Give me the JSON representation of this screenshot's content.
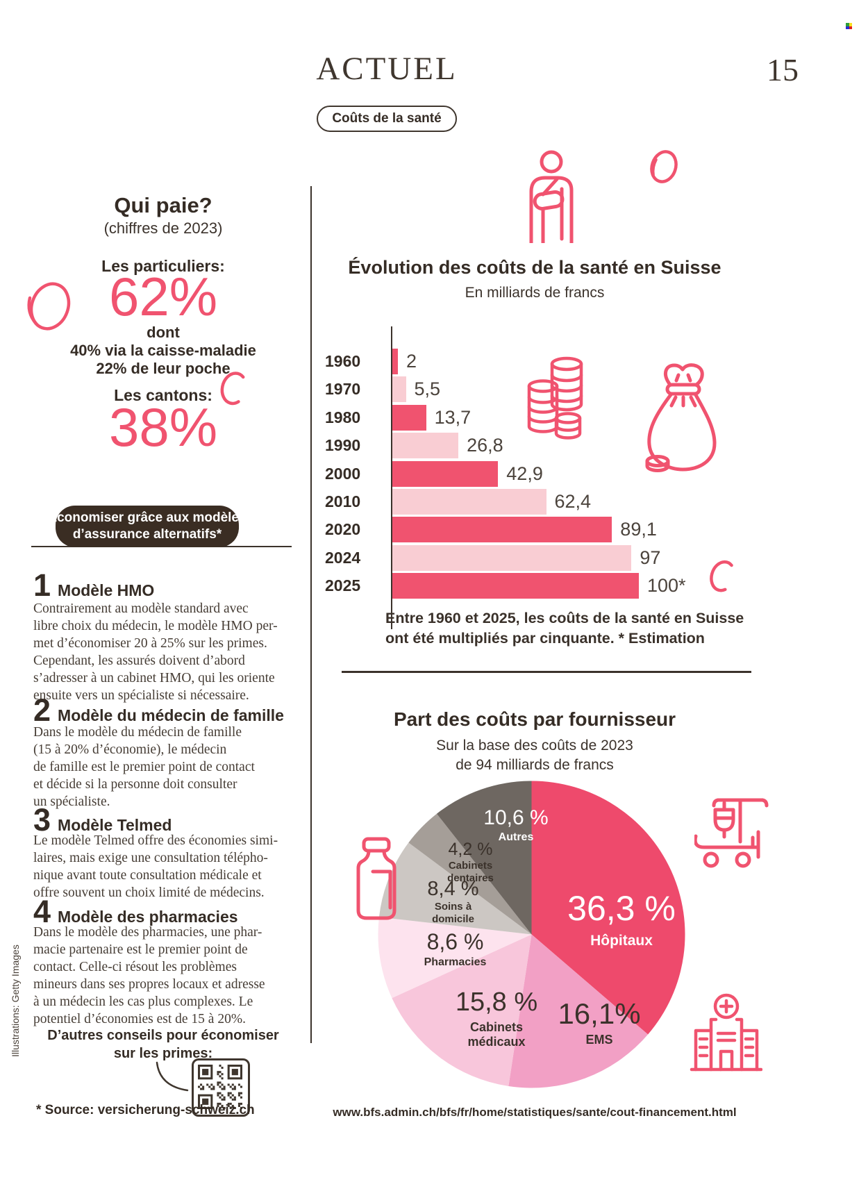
{
  "page": {
    "masthead": "ACTUEL",
    "section_badge": "Coûts de la santé",
    "page_number": "15",
    "credit_vertical": "Illustrations: Getty Images",
    "footnote": "* Source: versicherung-schweiz.ch",
    "source_url": "www.bfs.admin.ch/bfs/fr/home/statistiques/sante/cout-financement.html"
  },
  "colors": {
    "accent_pink": "#f0536f",
    "accent_pink_light": "#f9cdd3",
    "ink_brown": "#352c25",
    "badge_bg": "#3a2d23"
  },
  "who_pays": {
    "title": "Qui paie?",
    "subtitle": "(chiffres de 2023)",
    "particuliers_label": "Les particuliers:",
    "particuliers_value": "62%",
    "particuliers_details": [
      "dont",
      "40% via la caisse-maladie",
      "22% de leur poche"
    ],
    "cantons_label": "Les cantons:",
    "cantons_value": "38%"
  },
  "savings": {
    "badge_lines": [
      "Économiser grâce aux modèles",
      "d’assurance alternatifs*"
    ],
    "models": [
      {
        "number": "1",
        "title": "Modèle HMO",
        "body": [
          "Contrairement au modèle standard avec",
          "libre choix du médecin, le modèle HMO per-",
          "met d’économiser 20 à 25% sur les primes.",
          "Cependant, les assurés doivent d’abord",
          "s’adresser à un cabinet HMO, qui les oriente",
          "ensuite vers un spécialiste si nécessaire."
        ]
      },
      {
        "number": "2",
        "title": "Modèle du médecin de famille",
        "body": [
          "Dans le modèle du médecin de famille",
          "(15 à 20% d’économie), le médecin",
          "de famille est le premier point de contact",
          "et décide si la personne doit consulter",
          "un spécialiste."
        ]
      },
      {
        "number": "3",
        "title": "Modèle Telmed",
        "body": [
          "Le modèle Telmed offre des économies simi-",
          "laires, mais exige une consultation télépho-",
          "nique avant toute consultation médicale et",
          "offre souvent un choix limité de médecins."
        ]
      },
      {
        "number": "4",
        "title": "Modèle des pharmacies",
        "body": [
          "Dans le modèle des pharmacies, une phar-",
          "macie partenaire est le premier point de",
          "contact. Celle-ci résout les problèmes",
          "mineurs dans ses propres locaux et adresse",
          "à un médecin les cas plus complexes. Le",
          "potentiel d’économies est de 15 à 20%."
        ]
      }
    ],
    "tips_lines": [
      "D’autres conseils pour économiser",
      "sur les primes:"
    ]
  },
  "chart_data": [
    {
      "type": "bar",
      "orientation": "horizontal",
      "title": "Évolution des coûts de la santé en Suisse",
      "subtitle": "En milliards de francs",
      "categories": [
        "1960",
        "1970",
        "1980",
        "1990",
        "2000",
        "2010",
        "2020",
        "2024",
        "2025"
      ],
      "values": [
        2,
        5.5,
        13.7,
        26.8,
        42.9,
        62.4,
        89.1,
        97,
        100
      ],
      "value_labels": [
        "2",
        "5,5",
        "13,7",
        "26,8",
        "42,9",
        "62,4",
        "89,1",
        "97",
        "100*"
      ],
      "bar_colors_alternating": [
        "#f0536f",
        "#f9cdd3"
      ],
      "xlim": [
        0,
        100
      ],
      "grid": "off",
      "caption": [
        "Entre 1960 et 2025, les coûts de la santé en Suisse",
        "ont été multipliés par cinquante. * Estimation"
      ]
    },
    {
      "type": "pie",
      "title": "Part des coûts par fournisseur",
      "subtitle_lines": [
        "Sur la base des coûts de 2023",
        "de 94 milliards de francs"
      ],
      "start_angle_deg": 0,
      "direction": "clockwise",
      "slices": [
        {
          "label": "Hôpitaux",
          "value": 36.3,
          "value_label": "36,3 %",
          "color": "#ee4a6c",
          "text_color": "#ffffff"
        },
        {
          "label": "EMS",
          "value": 16.1,
          "value_label": "16,1%",
          "color": "#f2a0c5",
          "text_color": "#3b322b"
        },
        {
          "label": "Cabinets médicaux",
          "value": 15.8,
          "value_label": "15,8 %",
          "color": "#f8c6db",
          "text_color": "#3b322b"
        },
        {
          "label": "Pharmacies",
          "value": 8.6,
          "value_label": "8,6 %",
          "color": "#fde3ee",
          "text_color": "#3b322b"
        },
        {
          "label": "Soins à domicile",
          "value": 8.4,
          "value_label": "8,4 %",
          "color": "#ccc7c3",
          "text_color": "#3b322b"
        },
        {
          "label": "Cabinets dentaires",
          "value": 4.2,
          "value_label": "4,2 %",
          "color": "#a59e98",
          "text_color": "#3b322b"
        },
        {
          "label": "Autres",
          "value": 10.6,
          "value_label": "10,6 %",
          "color": "#6e6761",
          "text_color": "#ffffff"
        }
      ]
    }
  ],
  "icons": {
    "person-arm-sling-icon": "outlined person with arm in sling",
    "coin-icon": "outlined coin",
    "coins-stack-icon": "stacks of coins",
    "money-bag-icon": "tied money bag with coins",
    "hospital-bed-icon": "hospital bed with IV drip",
    "hospital-building-icon": "hospital building with cross",
    "pill-bottle-icon": "medicine bottle",
    "qr-code": "QR code",
    "coin-doodle-icon": "sketched coin doodle"
  }
}
